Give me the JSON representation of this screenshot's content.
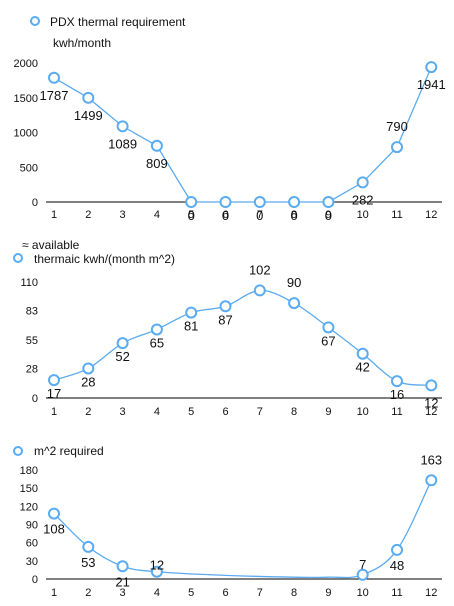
{
  "colors": {
    "series": "#5aabf0",
    "axis": "#000000",
    "text": "#111111"
  },
  "chart_data": [
    {
      "type": "line",
      "legend": "PDX thermal requirement",
      "ylabel": "kwh/month",
      "x": [
        1,
        2,
        3,
        4,
        5,
        6,
        7,
        8,
        9,
        10,
        11,
        12
      ],
      "values": [
        1787,
        1499,
        1089,
        809,
        0,
        0,
        0,
        0,
        0,
        282,
        790,
        1941
      ],
      "yticks": [
        0,
        500,
        1000,
        1500,
        2000
      ],
      "ylim": [
        0,
        2000
      ],
      "smooth": false
    },
    {
      "type": "line",
      "title": "≈ available",
      "legend": "thermaic kwh/(month m^2)",
      "x": [
        1,
        2,
        3,
        4,
        5,
        6,
        7,
        8,
        9,
        10,
        11,
        12
      ],
      "values": [
        17,
        28,
        52,
        65,
        81,
        87,
        102,
        90,
        67,
        42,
        16,
        12
      ],
      "yticks": [
        0,
        28,
        55,
        83,
        110
      ],
      "ylim": [
        0,
        110
      ],
      "smooth": true
    },
    {
      "type": "line",
      "legend": "m^2 required",
      "x": [
        1,
        2,
        3,
        4,
        5,
        6,
        7,
        8,
        9,
        10,
        11,
        12
      ],
      "values": [
        108,
        53,
        21,
        12,
        null,
        null,
        null,
        null,
        null,
        7,
        48,
        163
      ],
      "point_labels": [
        "108",
        "53",
        "21",
        "12",
        "",
        "",
        "",
        "",
        "",
        "7",
        "48",
        "163"
      ],
      "yticks": [
        0,
        30,
        60,
        90,
        120,
        150,
        180
      ],
      "ylim": [
        0,
        180
      ],
      "smooth": true
    }
  ]
}
